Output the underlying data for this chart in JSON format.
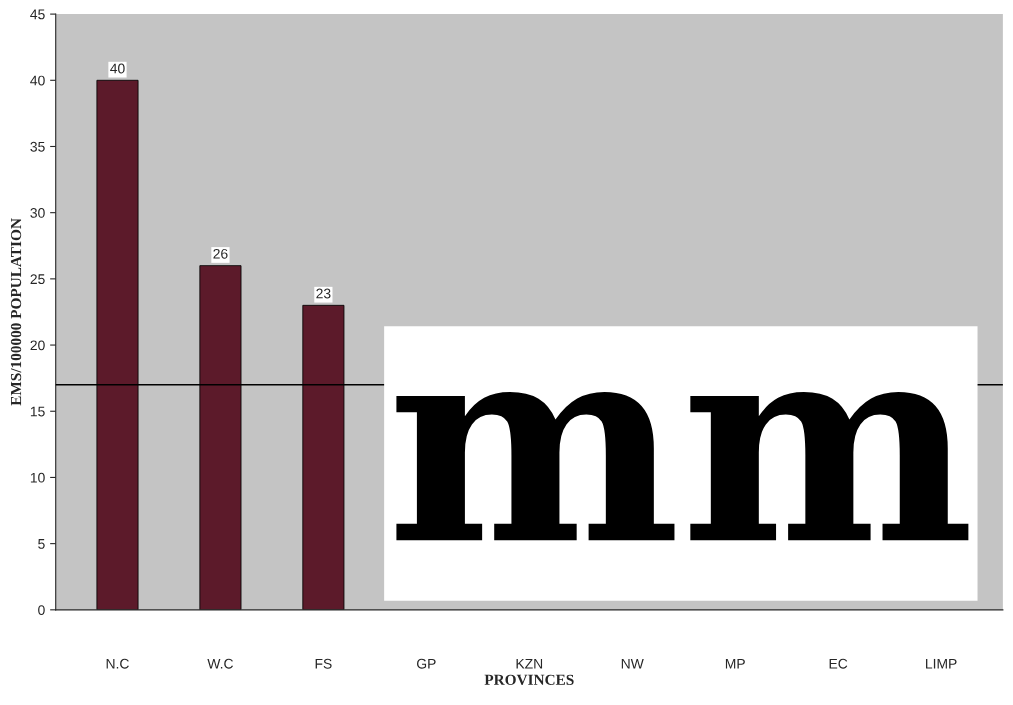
{
  "chart_data": {
    "type": "bar",
    "xlabel": "PROVINCES",
    "ylabel": "EMS/100000 POPULATION",
    "categories": [
      "N.C",
      "W.C",
      "FS",
      "GP",
      "KZN",
      "NW",
      "MP",
      "EC",
      "LIMP"
    ],
    "values": [
      40,
      26,
      23,
      null,
      null,
      null,
      null,
      null,
      null
    ],
    "color": "#5c1a2a",
    "ylim": [
      0,
      45
    ],
    "yticks": [
      0,
      5,
      10,
      15,
      20,
      25,
      30,
      35,
      40,
      45
    ],
    "data_labels": true,
    "ref_lines": [
      {
        "axis": "y",
        "value": 17,
        "color": "#000000"
      }
    ],
    "annotations": [
      "mm"
    ],
    "grid": false,
    "legend": false
  }
}
